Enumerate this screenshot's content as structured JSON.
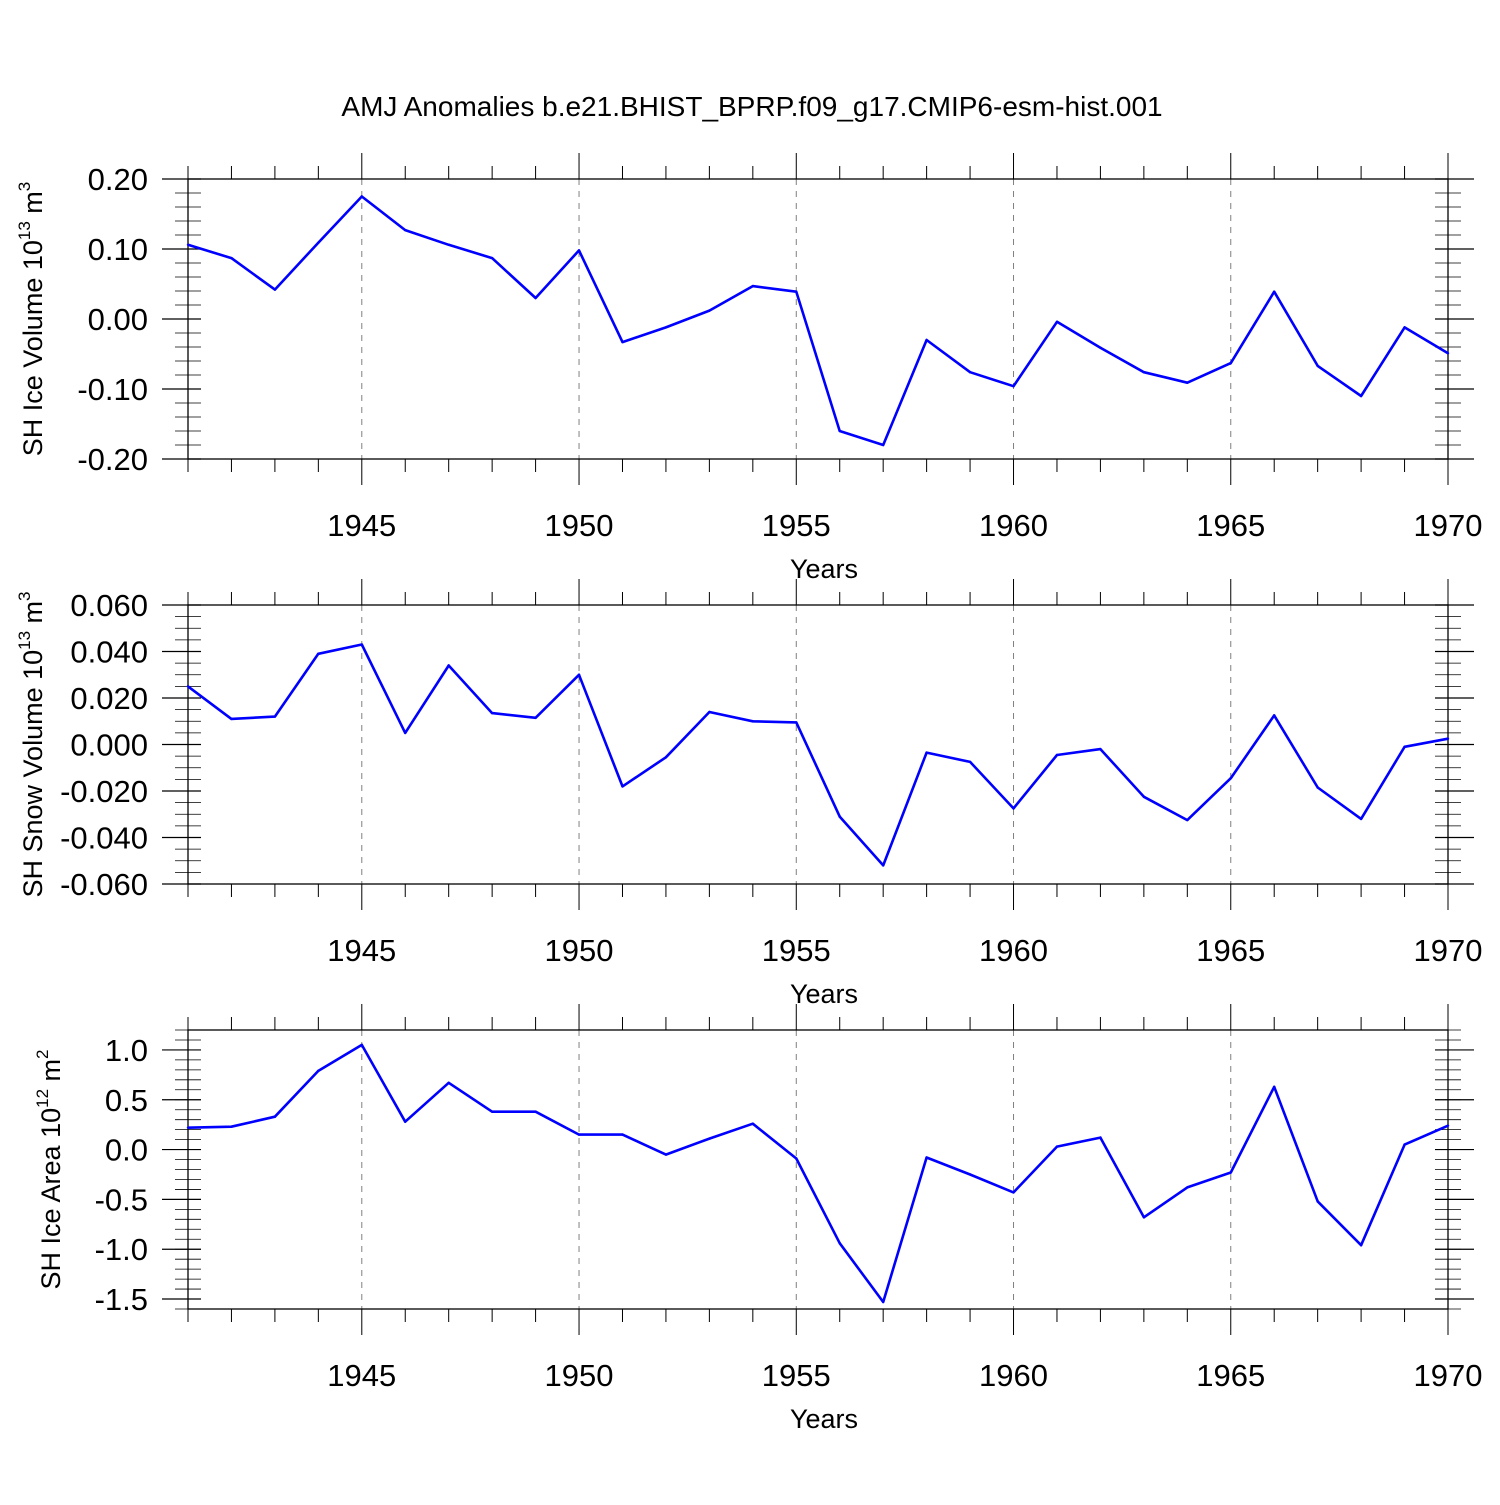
{
  "chart_data": [
    {
      "type": "line",
      "title": "AMJ Anomalies b.e21.BHIST_BPRP.f09_g17.CMIP6-esm-hist.001",
      "xlabel": "Years",
      "ylabel": {
        "main": "SH Ice Volume 10",
        "exp": "13",
        "unit": " m",
        "unit_exp": "3"
      },
      "xlim": [
        1941,
        1970
      ],
      "ylim": [
        -0.2,
        0.2
      ],
      "x_ticks": [
        "1945",
        "1950",
        "1955",
        "1960",
        "1965",
        "1970"
      ],
      "y_ticks": [
        "0.20",
        "0.10",
        "0.00",
        "-0.10",
        "-0.20"
      ],
      "y_tick_values": [
        0.2,
        0.1,
        0.0,
        -0.1,
        -0.2
      ],
      "y_minor_step": 0.02,
      "line_color": "#0000ff",
      "grid_color": "#808080",
      "x": [
        1941,
        1942,
        1943,
        1944,
        1945,
        1946,
        1947,
        1948,
        1949,
        1950,
        1951,
        1952,
        1953,
        1954,
        1955,
        1956,
        1957,
        1958,
        1959,
        1960,
        1961,
        1962,
        1963,
        1964,
        1965,
        1966,
        1967,
        1968,
        1969,
        1970
      ],
      "values": [
        0.106,
        0.087,
        0.042,
        0.109,
        0.175,
        0.127,
        0.106,
        0.087,
        0.03,
        0.098,
        -0.033,
        -0.012,
        0.012,
        0.047,
        0.039,
        -0.16,
        -0.18,
        -0.03,
        -0.076,
        -0.096,
        -0.004,
        -0.041,
        -0.076,
        -0.091,
        -0.063,
        0.039,
        -0.067,
        -0.11,
        -0.012,
        -0.049
      ]
    },
    {
      "type": "line",
      "xlabel": "Years",
      "ylabel": {
        "main": "SH Snow Volume 10",
        "exp": "13",
        "unit": " m",
        "unit_exp": "3"
      },
      "xlim": [
        1941,
        1970
      ],
      "ylim": [
        -0.06,
        0.06
      ],
      "x_ticks": [
        "1945",
        "1950",
        "1955",
        "1960",
        "1965",
        "1970"
      ],
      "y_ticks": [
        "0.060",
        "0.040",
        "0.020",
        "0.000",
        "-0.020",
        "-0.040",
        "-0.060"
      ],
      "y_tick_values": [
        0.06,
        0.04,
        0.02,
        0.0,
        -0.02,
        -0.04,
        -0.06
      ],
      "y_minor_step": 0.005,
      "line_color": "#0000ff",
      "grid_color": "#808080",
      "x": [
        1941,
        1942,
        1943,
        1944,
        1945,
        1946,
        1947,
        1948,
        1949,
        1950,
        1951,
        1952,
        1953,
        1954,
        1955,
        1956,
        1957,
        1958,
        1959,
        1960,
        1961,
        1962,
        1963,
        1964,
        1965,
        1966,
        1967,
        1968,
        1969,
        1970
      ],
      "values": [
        0.025,
        0.011,
        0.012,
        0.039,
        0.043,
        0.005,
        0.034,
        0.0135,
        0.0115,
        0.03,
        -0.018,
        -0.0055,
        0.014,
        0.01,
        0.0095,
        -0.031,
        -0.052,
        -0.0035,
        -0.0075,
        -0.0275,
        -0.0045,
        -0.002,
        -0.0225,
        -0.0325,
        -0.0145,
        0.0125,
        -0.0185,
        -0.032,
        -0.001,
        0.0025
      ]
    },
    {
      "type": "line",
      "xlabel": "Years",
      "ylabel": {
        "main": "SH Ice Area 10",
        "exp": "12",
        "unit": " m",
        "unit_exp": "2"
      },
      "xlim": [
        1941,
        1970
      ],
      "ylim": [
        -1.6,
        1.2
      ],
      "x_ticks": [
        "1945",
        "1950",
        "1955",
        "1960",
        "1965",
        "1970"
      ],
      "y_ticks": [
        "1.0",
        "0.5",
        "0.0",
        "-0.5",
        "-1.0",
        "-1.5"
      ],
      "y_tick_values": [
        1.0,
        0.5,
        0.0,
        -0.5,
        -1.0,
        -1.5
      ],
      "y_minor_step": 0.1,
      "line_color": "#0000ff",
      "grid_color": "#808080",
      "x": [
        1941,
        1942,
        1943,
        1944,
        1945,
        1946,
        1947,
        1948,
        1949,
        1950,
        1951,
        1952,
        1953,
        1954,
        1955,
        1956,
        1957,
        1958,
        1959,
        1960,
        1961,
        1962,
        1963,
        1964,
        1965,
        1966,
        1967,
        1968,
        1969,
        1970
      ],
      "values": [
        0.22,
        0.23,
        0.33,
        0.79,
        1.05,
        0.28,
        0.67,
        0.38,
        0.38,
        0.15,
        0.15,
        -0.05,
        0.11,
        0.26,
        -0.09,
        -0.94,
        -1.53,
        -0.08,
        -0.25,
        -0.43,
        0.03,
        0.12,
        -0.68,
        -0.38,
        -0.23,
        0.63,
        -0.52,
        -0.96,
        0.05,
        0.24
      ]
    }
  ]
}
